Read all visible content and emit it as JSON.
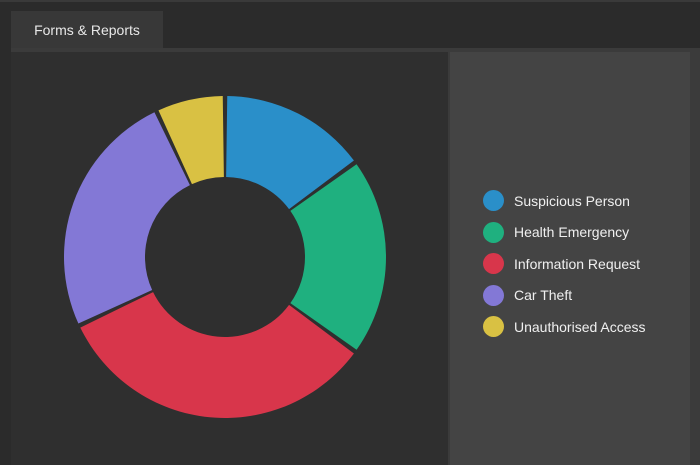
{
  "window": {
    "tab_label": "Forms & Reports"
  },
  "chart_data": {
    "type": "pie",
    "donut": true,
    "title": "",
    "legend_position": "right",
    "series": [
      {
        "name": "Suspicious Person",
        "value": 15,
        "color": "#2a8fc9"
      },
      {
        "name": "Health Emergency",
        "value": 20,
        "color": "#1fb07f"
      },
      {
        "name": "Information Request",
        "value": 33,
        "color": "#d8364b"
      },
      {
        "name": "Car Theft",
        "value": 25,
        "color": "#8378d6"
      },
      {
        "name": "Unauthorised Access",
        "value": 7,
        "color": "#d9c143"
      }
    ]
  }
}
